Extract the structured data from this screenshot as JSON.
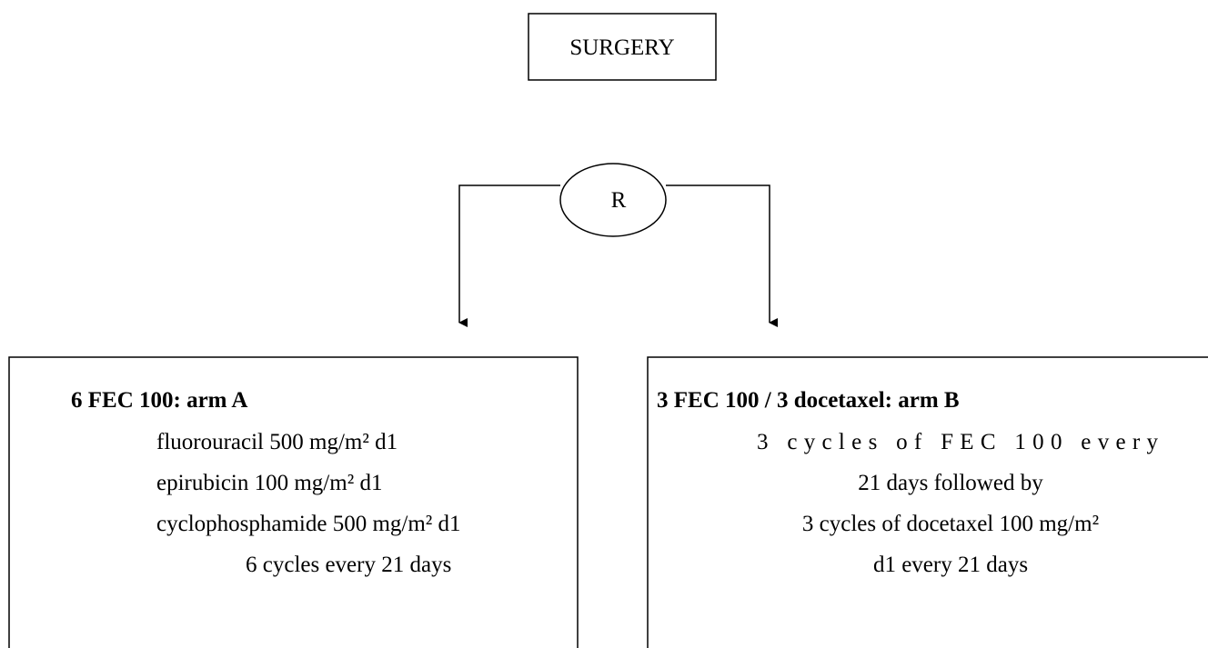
{
  "top": {
    "label": "SURGERY"
  },
  "randomization": {
    "label": "R"
  },
  "arms": [
    {
      "title": "6 FEC 100: arm A",
      "lines": [
        "fluorouracil 500 mg/m² d1",
        "epirubicin 100 mg/m² d1",
        "cyclophosphamide 500 mg/m² d1",
        "6 cycles every 21 days"
      ]
    },
    {
      "title": "3 FEC 100 / 3 docetaxel: arm B",
      "lines": [
        "3 cycles of FEC 100 every",
        "21 days followed by",
        "3 cycles of docetaxel 100 mg/m²",
        "d1 every 21 days"
      ]
    }
  ]
}
